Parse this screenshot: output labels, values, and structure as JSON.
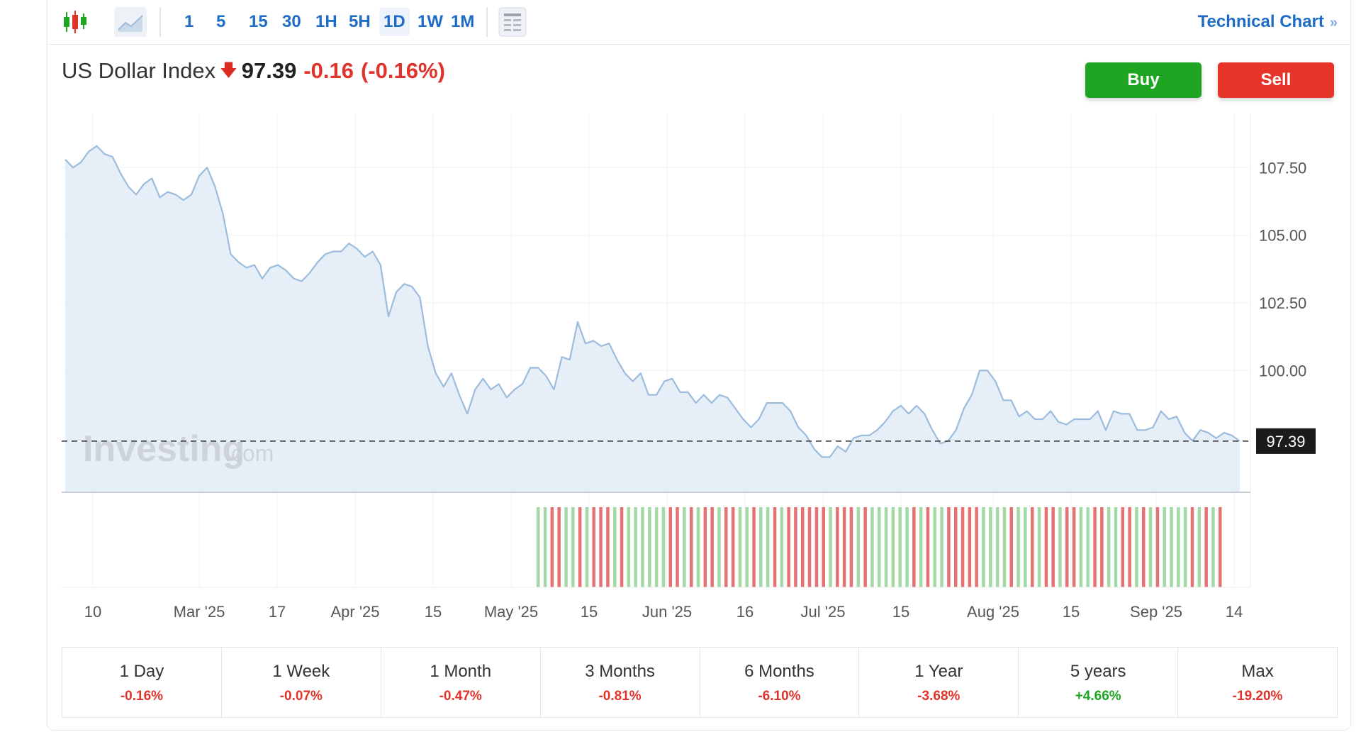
{
  "toolbar": {
    "intervals": [
      "1",
      "5",
      "15",
      "30",
      "1H",
      "5H",
      "1D",
      "1W",
      "1M"
    ],
    "active_interval": "1D",
    "technical_chart_label": "Technical Chart",
    "technical_chart_chevron": "»"
  },
  "quote": {
    "name": "US Dollar Index",
    "direction_icon": "down-arrow-icon",
    "price": "97.39",
    "change": "-0.16",
    "change_pct": "(-0.16%)"
  },
  "actions": {
    "buy_label": "Buy",
    "sell_label": "Sell"
  },
  "watermark": {
    "brand": "Investing",
    "suffix": ".com"
  },
  "colors": {
    "up": "#1ea522",
    "down": "#e0332b",
    "line": "#9cbcdd",
    "area": "#e6eef7",
    "accent": "#1f6cc4",
    "volume_up": "#a3d9a5",
    "volume_down": "#e57373"
  },
  "chart_data": {
    "type": "area",
    "y_ticks": [
      "107.50",
      "105.00",
      "102.50",
      "100.00"
    ],
    "ylim": [
      95.5,
      109.5
    ],
    "x_ticks": [
      "10",
      "Mar '25",
      "17",
      "Apr '25",
      "15",
      "May '25",
      "15",
      "Jun '25",
      "16",
      "Jul '25",
      "15",
      "Aug '25",
      "15",
      "Sep '25",
      "14"
    ],
    "last_value_label": "97.39",
    "last_value": 97.39,
    "grid": true,
    "series": [
      {
        "values": [
          107.8,
          107.5,
          107.7,
          108.1,
          108.3,
          108.0,
          107.9,
          107.3,
          106.8,
          106.5,
          106.9,
          107.1,
          106.4,
          106.6,
          106.5,
          106.3,
          106.5,
          107.2,
          107.5,
          106.8,
          105.8,
          104.3,
          104.0,
          103.8,
          103.9,
          103.4,
          103.8,
          103.9,
          103.7,
          103.4,
          103.3,
          103.6,
          104.0,
          104.3,
          104.4,
          104.4,
          104.7,
          104.5,
          104.2,
          104.4,
          103.9,
          102.0,
          102.9,
          103.2,
          103.1,
          102.7,
          100.9,
          99.9,
          99.4,
          99.9,
          99.1,
          98.4,
          99.3,
          99.7,
          99.3,
          99.5,
          99.0,
          99.3,
          99.5,
          100.1,
          100.1,
          99.8,
          99.3,
          100.5,
          100.4,
          101.8,
          101.0,
          101.1,
          100.9,
          101.0,
          100.4,
          99.9,
          99.6,
          99.9,
          99.1,
          99.1,
          99.6,
          99.7,
          99.2,
          99.2,
          98.8,
          99.1,
          98.8,
          99.1,
          99.0,
          98.6,
          98.2,
          97.9,
          98.2,
          98.8,
          98.8,
          98.8,
          98.5,
          97.9,
          97.6,
          97.1,
          96.8,
          96.8,
          97.2,
          97.0,
          97.5,
          97.6,
          97.6,
          97.8,
          98.1,
          98.5,
          98.7,
          98.4,
          98.7,
          98.4,
          97.8,
          97.3,
          97.4,
          97.8,
          98.6,
          99.1,
          100.0,
          100.0,
          99.6,
          98.9,
          98.9,
          98.3,
          98.5,
          98.2,
          98.2,
          98.5,
          98.1,
          98.0,
          98.2,
          98.2,
          98.2,
          98.5,
          97.8,
          98.5,
          98.4,
          98.4,
          97.8,
          97.8,
          97.9,
          98.5,
          98.2,
          98.3,
          97.7,
          97.4,
          97.8,
          97.7,
          97.5,
          97.7,
          97.6,
          97.39
        ]
      }
    ],
    "volume_pattern": "g,g,r,r,g,g,r,g,r,r,r,g,r,g,g,g,g,g,g,r,r,g,r,g,r,r,g,r,r,g,g,r,g,g,r,g,r,r,r,r,r,r,g,r,r,r,g,r,g,g,g,g,g,g,r,g,r,g,g,r,r,r,r,r,g,g,g,g,r,g,g,r,g,r,r,g,r,r,g,g,r,r,g,g,r,r,g,r,g,r,g,g,g,g,r,g,r,g,r"
  },
  "periods": [
    {
      "label": "1 Day",
      "value": "-0.16%",
      "sign": "neg"
    },
    {
      "label": "1 Week",
      "value": "-0.07%",
      "sign": "neg"
    },
    {
      "label": "1 Month",
      "value": "-0.47%",
      "sign": "neg"
    },
    {
      "label": "3 Months",
      "value": "-0.81%",
      "sign": "neg"
    },
    {
      "label": "6 Months",
      "value": "-6.10%",
      "sign": "neg"
    },
    {
      "label": "1 Year",
      "value": "-3.68%",
      "sign": "neg"
    },
    {
      "label": "5 years",
      "value": "+4.66%",
      "sign": "pos"
    },
    {
      "label": "Max",
      "value": "-19.20%",
      "sign": "neg"
    }
  ]
}
